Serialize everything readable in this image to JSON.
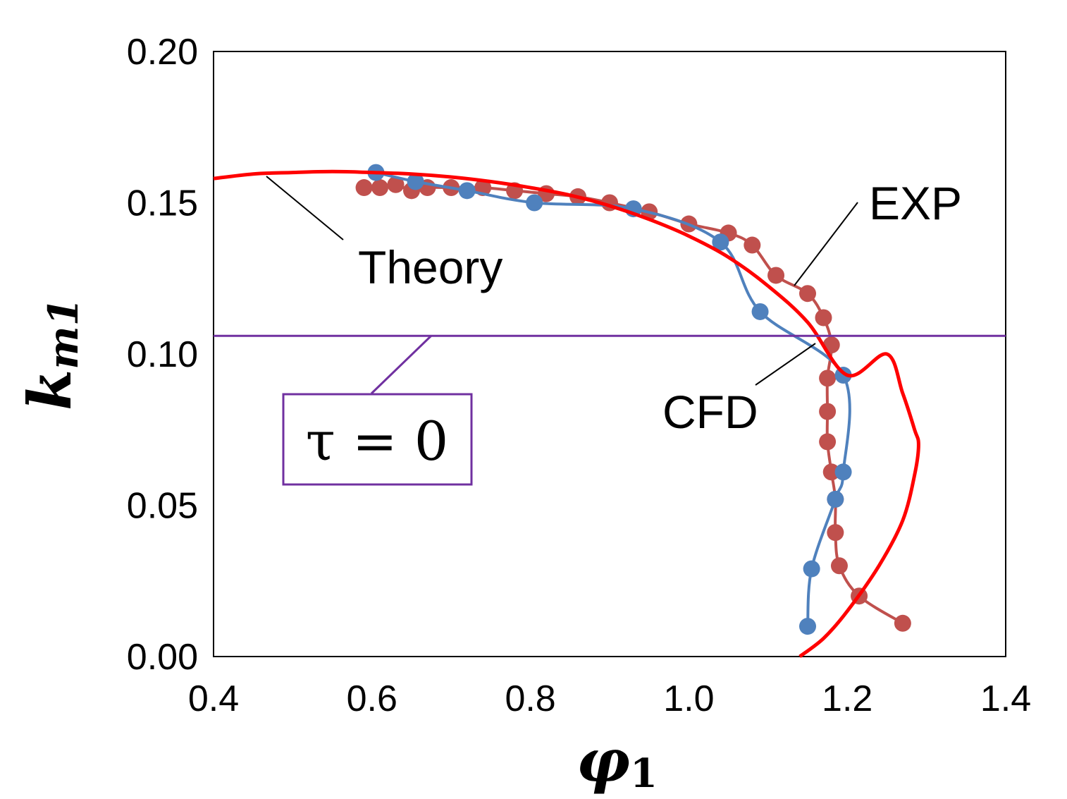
{
  "chart_data": {
    "type": "line",
    "xlabel": "φ",
    "xlabel_sub": "1",
    "ylabel": "k",
    "ylabel_sub": "m1",
    "xlim": [
      0.4,
      1.4
    ],
    "ylim": [
      0.0,
      0.2
    ],
    "xticks": [
      0.4,
      0.6,
      0.8,
      1.0,
      1.2,
      1.4
    ],
    "xtick_labels": [
      "0.4",
      "0.6",
      "0.8",
      "1.0",
      "1.2",
      "1.4"
    ],
    "yticks": [
      0.0,
      0.05,
      0.1,
      0.15,
      0.2
    ],
    "ytick_labels": [
      "0.00",
      "0.05",
      "0.10",
      "0.15",
      "0.20"
    ],
    "grid": false,
    "legend": "none",
    "series": [
      {
        "name": "Theory",
        "color": "#ff0000",
        "marker": "none",
        "x": [
          0.4,
          0.45,
          0.5,
          0.55,
          0.6,
          0.65,
          0.7,
          0.75,
          0.8,
          0.85,
          0.9,
          0.95,
          1.0,
          1.05,
          1.1,
          1.15,
          1.2,
          1.25,
          1.27,
          1.285,
          1.29,
          1.285,
          1.27,
          1.24,
          1.2,
          1.17,
          1.14
        ],
        "y": [
          0.158,
          0.1595,
          0.16,
          0.1603,
          0.16,
          0.1595,
          0.1585,
          0.157,
          0.155,
          0.1525,
          0.149,
          0.1445,
          0.139,
          0.132,
          0.1225,
          0.1105,
          0.093,
          0.1,
          0.087,
          0.075,
          0.07,
          0.06,
          0.045,
          0.03,
          0.015,
          0.006,
          0.0
        ]
      },
      {
        "name": "EXP",
        "color": "#c0504d",
        "marker": "circle",
        "x": [
          0.59,
          0.61,
          0.63,
          0.65,
          0.67,
          0.7,
          0.74,
          0.78,
          0.82,
          0.86,
          0.9,
          0.95,
          1.0,
          1.05,
          1.08,
          1.11,
          1.15,
          1.17,
          1.18,
          1.175,
          1.175,
          1.175,
          1.18,
          1.185,
          1.185,
          1.19,
          1.215,
          1.27
        ],
        "y": [
          0.155,
          0.155,
          0.156,
          0.154,
          0.155,
          0.155,
          0.155,
          0.154,
          0.153,
          0.152,
          0.15,
          0.147,
          0.143,
          0.14,
          0.136,
          0.126,
          0.12,
          0.112,
          0.103,
          0.092,
          0.081,
          0.071,
          0.061,
          0.052,
          0.041,
          0.03,
          0.02,
          0.011
        ]
      },
      {
        "name": "CFD",
        "color": "#4f81bd",
        "marker": "circle",
        "x": [
          0.605,
          0.655,
          0.72,
          0.805,
          0.93,
          1.04,
          1.09,
          1.195,
          1.195,
          1.185,
          1.155,
          1.15
        ],
        "y": [
          0.16,
          0.157,
          0.154,
          0.15,
          0.148,
          0.137,
          0.114,
          0.093,
          0.061,
          0.052,
          0.029,
          0.01
        ]
      },
      {
        "name": "τ = 0",
        "color": "#7030a0",
        "marker": "none",
        "x": [
          0.4,
          1.4
        ],
        "y": [
          0.106,
          0.106
        ]
      }
    ],
    "annotations": [
      "Theory",
      "EXP",
      "CFD",
      "τ = 0"
    ]
  }
}
